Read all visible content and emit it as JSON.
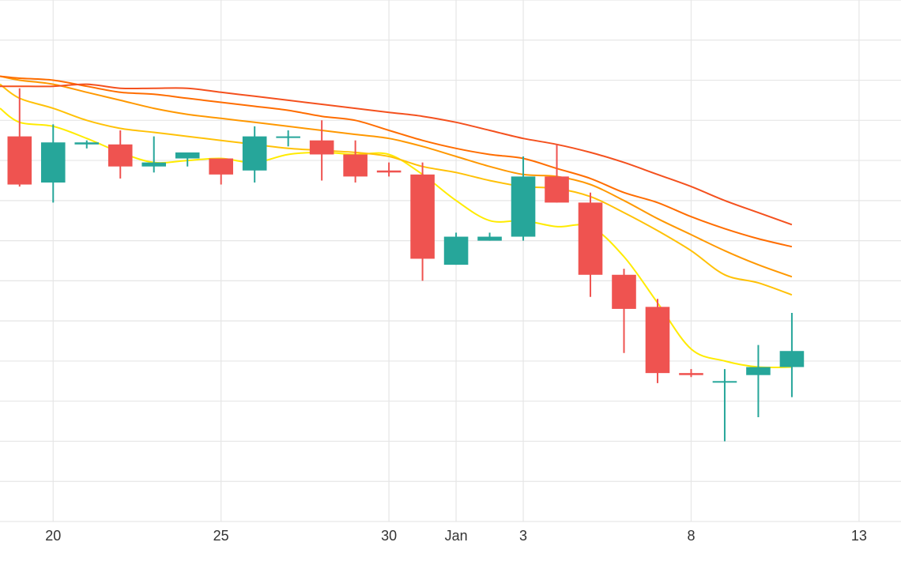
{
  "chart_data": {
    "type": "candlestick",
    "x_ticks": [
      {
        "date": "2024-12-20",
        "label": "20"
      },
      {
        "date": "2024-12-25",
        "label": "25"
      },
      {
        "date": "2024-12-30",
        "label": "30"
      },
      {
        "date": "2025-01-01",
        "label": "Jan"
      },
      {
        "date": "2025-01-03",
        "label": "3"
      },
      {
        "date": "2025-01-08",
        "label": "8"
      },
      {
        "date": "2025-01-13",
        "label": "13"
      }
    ],
    "x_range": [
      "2024-12-18T10:00",
      "2025-01-14T06:00"
    ],
    "y_range": [
      0,
      13
    ],
    "y_gridlines": [
      1,
      2,
      3,
      4,
      5,
      6,
      7,
      8,
      9,
      10,
      11,
      12,
      13
    ],
    "grid": true,
    "colors": {
      "up": "#26a69a",
      "down": "#ef5350",
      "grid": "#e6e6e6"
    },
    "candles": [
      {
        "date": "2024-12-19",
        "open": 9.6,
        "high": 10.8,
        "low": 8.35,
        "close": 8.4
      },
      {
        "date": "2024-12-20",
        "open": 8.45,
        "high": 9.9,
        "low": 7.95,
        "close": 9.45
      },
      {
        "date": "2024-12-21",
        "open": 9.4,
        "high": 9.5,
        "low": 9.3,
        "close": 9.45
      },
      {
        "date": "2024-12-22",
        "open": 9.4,
        "high": 9.75,
        "low": 8.55,
        "close": 8.85
      },
      {
        "date": "2024-12-23",
        "open": 8.85,
        "high": 9.6,
        "low": 8.7,
        "close": 8.95
      },
      {
        "date": "2024-12-24",
        "open": 9.05,
        "high": 9.15,
        "low": 8.85,
        "close": 9.2
      },
      {
        "date": "2024-12-25",
        "open": 9.05,
        "high": 9.05,
        "low": 8.4,
        "close": 8.65
      },
      {
        "date": "2024-12-26",
        "open": 8.75,
        "high": 9.85,
        "low": 8.45,
        "close": 9.6
      },
      {
        "date": "2024-12-27",
        "open": 9.6,
        "high": 9.75,
        "low": 9.35,
        "close": 9.6
      },
      {
        "date": "2024-12-28",
        "open": 9.5,
        "high": 10.0,
        "low": 8.5,
        "close": 9.15
      },
      {
        "date": "2024-12-29",
        "open": 9.15,
        "high": 9.5,
        "low": 8.45,
        "close": 8.6
      },
      {
        "date": "2024-12-30",
        "open": 8.75,
        "high": 8.95,
        "low": 8.6,
        "close": 8.7
      },
      {
        "date": "2024-12-31",
        "open": 8.65,
        "high": 8.95,
        "low": 6.0,
        "close": 6.55
      },
      {
        "date": "2025-01-01",
        "open": 6.4,
        "high": 7.2,
        "low": 6.4,
        "close": 7.1
      },
      {
        "date": "2025-01-02",
        "open": 7.0,
        "high": 7.2,
        "low": 7.0,
        "close": 7.1
      },
      {
        "date": "2025-01-03",
        "open": 7.1,
        "high": 9.1,
        "low": 7.0,
        "close": 8.6
      },
      {
        "date": "2025-01-04",
        "open": 8.6,
        "high": 9.4,
        "low": 7.95,
        "close": 7.95
      },
      {
        "date": "2025-01-05",
        "open": 7.95,
        "high": 8.2,
        "low": 5.6,
        "close": 6.15
      },
      {
        "date": "2025-01-06",
        "open": 6.15,
        "high": 6.3,
        "low": 4.2,
        "close": 5.3
      },
      {
        "date": "2025-01-07",
        "open": 5.35,
        "high": 5.55,
        "low": 3.45,
        "close": 3.7
      },
      {
        "date": "2025-01-08",
        "open": 3.7,
        "high": 3.8,
        "low": 3.6,
        "close": 3.65
      },
      {
        "date": "2025-01-09",
        "open": 3.5,
        "high": 3.8,
        "low": 2.0,
        "close": 3.5
      },
      {
        "date": "2025-01-10",
        "open": 3.65,
        "high": 4.4,
        "low": 2.6,
        "close": 3.85
      },
      {
        "date": "2025-01-11",
        "open": 3.85,
        "high": 5.2,
        "low": 3.1,
        "close": 4.25
      }
    ],
    "series": [
      {
        "type": "line",
        "color": "#ffeb00",
        "points": [
          [
            "2024-12-18T10:00",
            10.3
          ],
          [
            "2024-12-19",
            9.95
          ],
          [
            "2024-12-20",
            9.85
          ],
          [
            "2024-12-21",
            9.55
          ],
          [
            "2024-12-22",
            9.2
          ],
          [
            "2024-12-23",
            8.95
          ],
          [
            "2024-12-24",
            9.0
          ],
          [
            "2024-12-25",
            9.05
          ],
          [
            "2024-12-26",
            8.95
          ],
          [
            "2024-12-27",
            9.15
          ],
          [
            "2024-12-28",
            9.2
          ],
          [
            "2024-12-29",
            9.15
          ],
          [
            "2024-12-30",
            9.15
          ],
          [
            "2024-12-31",
            8.65
          ],
          [
            "2025-01-01",
            8.0
          ],
          [
            "2025-01-02",
            7.5
          ],
          [
            "2025-01-03",
            7.5
          ],
          [
            "2025-01-04",
            7.35
          ],
          [
            "2025-01-05",
            7.35
          ],
          [
            "2025-01-06",
            6.6
          ],
          [
            "2025-01-07",
            5.45
          ],
          [
            "2025-01-08",
            4.3
          ],
          [
            "2025-01-09",
            4.0
          ],
          [
            "2025-01-10",
            3.85
          ],
          [
            "2025-01-11",
            3.85
          ]
        ]
      },
      {
        "type": "line",
        "color": "#ffc107",
        "points": [
          [
            "2024-12-18T10:00",
            10.9
          ],
          [
            "2024-12-19",
            10.55
          ],
          [
            "2024-12-20",
            10.3
          ],
          [
            "2024-12-21",
            10.0
          ],
          [
            "2024-12-22",
            9.8
          ],
          [
            "2024-12-23",
            9.7
          ],
          [
            "2024-12-24",
            9.6
          ],
          [
            "2024-12-25",
            9.5
          ],
          [
            "2024-12-26",
            9.4
          ],
          [
            "2024-12-27",
            9.3
          ],
          [
            "2024-12-28",
            9.25
          ],
          [
            "2024-12-29",
            9.2
          ],
          [
            "2024-12-30",
            9.1
          ],
          [
            "2024-12-31",
            8.85
          ],
          [
            "2025-01-01",
            8.7
          ],
          [
            "2025-01-02",
            8.5
          ],
          [
            "2025-01-03",
            8.35
          ],
          [
            "2025-01-04",
            8.3
          ],
          [
            "2025-01-05",
            8.1
          ],
          [
            "2025-01-06",
            7.7
          ],
          [
            "2025-01-07",
            7.25
          ],
          [
            "2025-01-08",
            6.75
          ],
          [
            "2025-01-09",
            6.15
          ],
          [
            "2025-01-10",
            5.95
          ],
          [
            "2025-01-11",
            5.65
          ]
        ]
      },
      {
        "type": "line",
        "color": "#ff9800",
        "points": [
          [
            "2024-12-18T10:00",
            11.1
          ],
          [
            "2024-12-19",
            11.0
          ],
          [
            "2024-12-20",
            10.9
          ],
          [
            "2024-12-21",
            10.7
          ],
          [
            "2024-12-22",
            10.5
          ],
          [
            "2024-12-23",
            10.3
          ],
          [
            "2024-12-24",
            10.15
          ],
          [
            "2024-12-25",
            10.05
          ],
          [
            "2024-12-26",
            9.95
          ],
          [
            "2024-12-27",
            9.85
          ],
          [
            "2024-12-28",
            9.75
          ],
          [
            "2024-12-29",
            9.65
          ],
          [
            "2024-12-30",
            9.55
          ],
          [
            "2024-12-31",
            9.35
          ],
          [
            "2025-01-01",
            9.1
          ],
          [
            "2025-01-02",
            8.85
          ],
          [
            "2025-01-03",
            8.65
          ],
          [
            "2025-01-04",
            8.6
          ],
          [
            "2025-01-05",
            8.4
          ],
          [
            "2025-01-06",
            8.0
          ],
          [
            "2025-01-07",
            7.55
          ],
          [
            "2025-01-08",
            7.15
          ],
          [
            "2025-01-09",
            6.75
          ],
          [
            "2025-01-10",
            6.4
          ],
          [
            "2025-01-11",
            6.1
          ]
        ]
      },
      {
        "type": "line",
        "color": "#ff6d00",
        "points": [
          [
            "2024-12-18T10:00",
            11.1
          ],
          [
            "2024-12-19",
            11.05
          ],
          [
            "2024-12-20",
            11.0
          ],
          [
            "2024-12-21",
            10.85
          ],
          [
            "2024-12-22",
            10.7
          ],
          [
            "2024-12-23",
            10.65
          ],
          [
            "2024-12-24",
            10.55
          ],
          [
            "2024-12-25",
            10.45
          ],
          [
            "2024-12-26",
            10.35
          ],
          [
            "2024-12-27",
            10.25
          ],
          [
            "2024-12-28",
            10.1
          ],
          [
            "2024-12-29",
            10.0
          ],
          [
            "2024-12-30",
            9.75
          ],
          [
            "2024-12-31",
            9.5
          ],
          [
            "2025-01-01",
            9.3
          ],
          [
            "2025-01-02",
            9.15
          ],
          [
            "2025-01-03",
            9.05
          ],
          [
            "2025-01-04",
            8.8
          ],
          [
            "2025-01-05",
            8.55
          ],
          [
            "2025-01-06",
            8.2
          ],
          [
            "2025-01-07",
            7.95
          ],
          [
            "2025-01-08",
            7.6
          ],
          [
            "2025-01-09",
            7.3
          ],
          [
            "2025-01-10",
            7.05
          ],
          [
            "2025-01-11",
            6.85
          ]
        ]
      },
      {
        "type": "line",
        "color": "#f4511e",
        "points": [
          [
            "2024-12-18T10:00",
            10.85
          ],
          [
            "2024-12-19",
            10.85
          ],
          [
            "2024-12-20",
            10.85
          ],
          [
            "2024-12-21",
            10.9
          ],
          [
            "2024-12-22",
            10.8
          ],
          [
            "2024-12-23",
            10.8
          ],
          [
            "2024-12-24",
            10.8
          ],
          [
            "2024-12-25",
            10.7
          ],
          [
            "2024-12-26",
            10.6
          ],
          [
            "2024-12-27",
            10.5
          ],
          [
            "2024-12-28",
            10.4
          ],
          [
            "2024-12-29",
            10.3
          ],
          [
            "2024-12-30",
            10.2
          ],
          [
            "2024-12-31",
            10.1
          ],
          [
            "2025-01-01",
            9.95
          ],
          [
            "2025-01-02",
            9.75
          ],
          [
            "2025-01-03",
            9.55
          ],
          [
            "2025-01-04",
            9.4
          ],
          [
            "2025-01-05",
            9.2
          ],
          [
            "2025-01-06",
            8.95
          ],
          [
            "2025-01-07",
            8.65
          ],
          [
            "2025-01-08",
            8.35
          ],
          [
            "2025-01-09",
            8.0
          ],
          [
            "2025-01-10",
            7.7
          ],
          [
            "2025-01-11",
            7.4
          ]
        ]
      }
    ]
  }
}
